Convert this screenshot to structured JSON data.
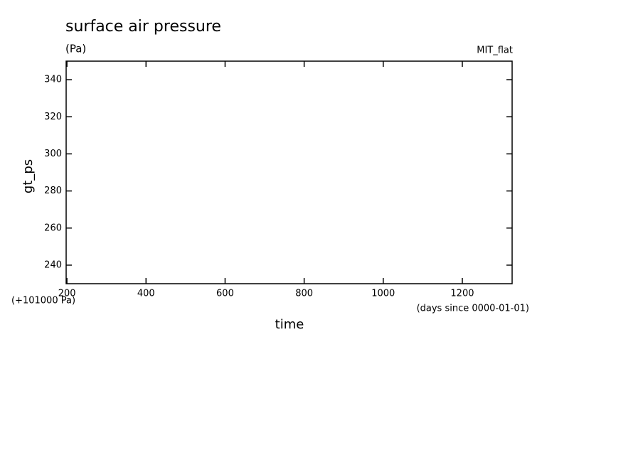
{
  "chart_data": {
    "type": "line",
    "title": "surface air pressure",
    "subtitle": "(Pa)",
    "annotation": "MIT_flat",
    "x_label": "time",
    "x_unit_note": "(days since 0000-01-01)",
    "y_label": "gt_ps",
    "y_offset_note": "(+101000 Pa)",
    "xlim": [
      198,
      1326
    ],
    "xticks": [
      200,
      400,
      600,
      800,
      1000,
      1200
    ],
    "ylim": [
      230,
      350
    ],
    "yticks": [
      240,
      260,
      280,
      300,
      320,
      340
    ],
    "series": []
  }
}
